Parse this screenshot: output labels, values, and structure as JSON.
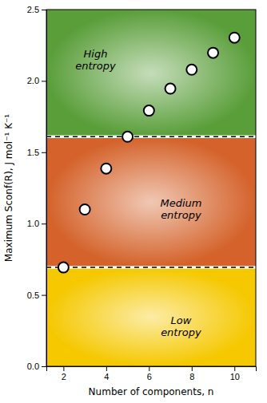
{
  "chart_data": {
    "type": "scatter",
    "x": [
      2,
      3,
      4,
      5,
      6,
      7,
      8,
      9,
      10
    ],
    "y": [
      0.693,
      1.099,
      1.386,
      1.609,
      1.792,
      1.946,
      2.079,
      2.197,
      2.303
    ],
    "xlim": [
      1.2,
      11.0
    ],
    "ylim": [
      0,
      2.5
    ],
    "xticks": [
      2,
      4,
      6,
      8,
      10
    ],
    "yticks": [
      {
        "value": 0,
        "label": "0.0"
      },
      0.5,
      {
        "value": 1.0,
        "label": "1.0"
      },
      1.5,
      {
        "value": 2.0,
        "label": "2.0"
      },
      2.5
    ],
    "xlabel": "Number of components, n",
    "ylabel": "Maximum Sconf(R), J mol⁻¹ K⁻¹",
    "marker": "circle",
    "color": "black",
    "grid": false,
    "reference_lines": [
      0.693,
      1.609
    ],
    "band_colors": [
      "#F5C800",
      "#D4622A",
      "#5A9E3A"
    ],
    "annotations": [
      {
        "text": "Low\nentropy",
        "x": 7.5,
        "y": 0.28
      },
      {
        "text": "Medium\nentropy",
        "x": 7.5,
        "y": 1.1
      },
      {
        "text": "High\nentropy",
        "x": 3.5,
        "y": 2.15
      }
    ]
  }
}
